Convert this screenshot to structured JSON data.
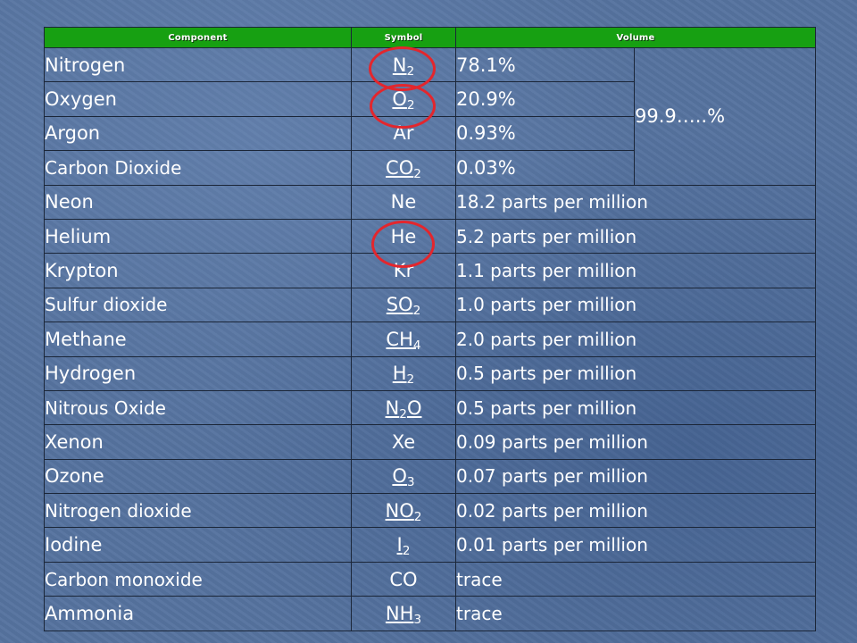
{
  "header": {
    "component": "Component",
    "symbol": "Symbol",
    "volume": "Volume"
  },
  "total_volume": "99.9…..%",
  "rows": [
    {
      "component": "Nitrogen",
      "symbol": "N",
      "sub": "2",
      "volume": "78.1%"
    },
    {
      "component": "Oxygen",
      "symbol": "O",
      "sub": "2",
      "volume": "20.9%"
    },
    {
      "component": "Argon",
      "symbol": "Ar",
      "sub": "",
      "volume": "0.93%"
    },
    {
      "component": "Carbon Dioxide",
      "symbol": "CO",
      "sub": "2",
      "volume": "0.03%"
    },
    {
      "component": "Neon",
      "symbol": "Ne",
      "sub": "",
      "volume": "18.2 parts per million"
    },
    {
      "component": "Helium",
      "symbol": "He",
      "sub": "",
      "volume": "5.2 parts per million"
    },
    {
      "component": "Krypton",
      "symbol": "Kr",
      "sub": "",
      "volume": "1.1 parts per million"
    },
    {
      "component": "Sulfur dioxide",
      "symbol": "SO",
      "sub": "2",
      "volume": "1.0 parts per million"
    },
    {
      "component": "Methane",
      "symbol": "CH",
      "sub": "4",
      "volume": "2.0 parts per million"
    },
    {
      "component": "Hydrogen",
      "symbol": "H",
      "sub": "2",
      "volume": "0.5 parts per million"
    },
    {
      "component": "Nitrous Oxide",
      "symbol": "N",
      "sub": "2",
      "symbol_tail": "O",
      "volume": "0.5 parts per million"
    },
    {
      "component": "Xenon",
      "symbol": "Xe",
      "sub": "",
      "volume": "0.09 parts per million"
    },
    {
      "component": "Ozone",
      "symbol": "O",
      "sub": "3",
      "volume": "0.07 parts per million"
    },
    {
      "component": "Nitrogen dioxide",
      "symbol": "NO",
      "sub": "2",
      "volume": "0.02 parts per million"
    },
    {
      "component": "Iodine",
      "symbol": "I",
      "sub": "2",
      "volume": "0.01 parts per million"
    },
    {
      "component": "Carbon monoxide",
      "symbol": "CO",
      "sub": "",
      "volume": "trace"
    },
    {
      "component": "Ammonia",
      "symbol": "NH",
      "sub": "3",
      "volume": "trace"
    }
  ],
  "colors": {
    "header_green": "#17a012",
    "highlight_circle": "#e3262d",
    "background": "#56739f"
  }
}
